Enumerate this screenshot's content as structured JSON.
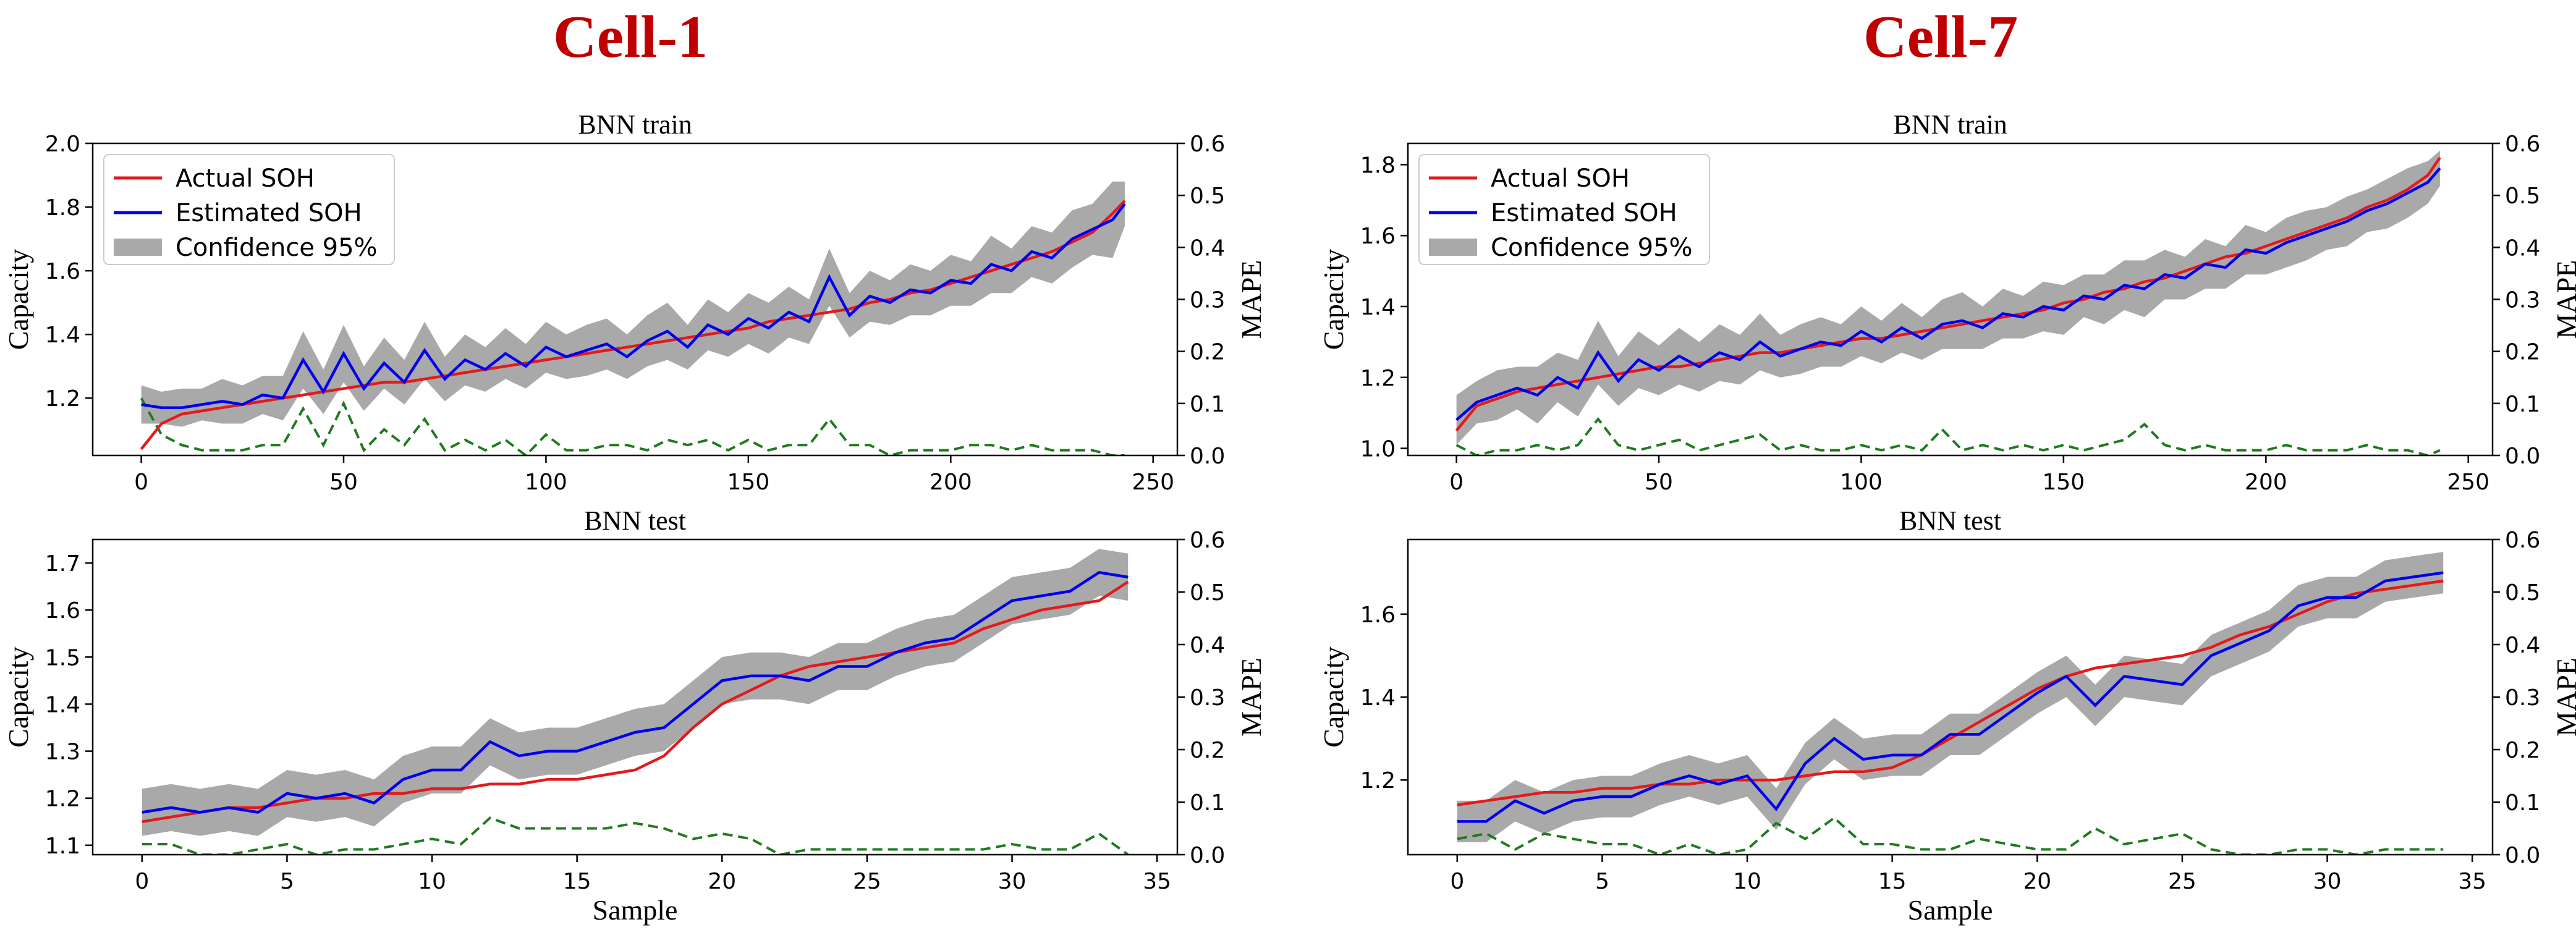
{
  "colors": {
    "actual": "#e31a1c",
    "estimated": "#0000ee",
    "band": "#a9a9a9",
    "mape": "#1e7b1e",
    "cell_title": "#c00000"
  },
  "legend": {
    "actual": "Actual SOH",
    "estimated": "Estimated SOH",
    "confidence": "Confidence 95%"
  },
  "cells": [
    {
      "title": "Cell-1"
    },
    {
      "title": "Cell-7"
    }
  ],
  "chart_data": [
    {
      "id": "c1-train",
      "type": "line",
      "cell": "Cell-1",
      "title": "BNN train",
      "xlabel": "",
      "ylabel": "Capacity",
      "y2label": "MAPE",
      "xlim": [
        -12,
        256
      ],
      "ylim": [
        1.02,
        2.0
      ],
      "y2lim": [
        0,
        0.6
      ],
      "xticks": [
        0,
        50,
        100,
        150,
        200,
        250
      ],
      "yticks": [
        1.2,
        1.4,
        1.6,
        1.8,
        2.0
      ],
      "y2ticks": [
        0.0,
        0.1,
        0.2,
        0.3,
        0.4,
        0.5,
        0.6
      ],
      "legend_loc": "upper-left",
      "x": [
        0,
        5,
        10,
        15,
        20,
        25,
        30,
        35,
        40,
        45,
        50,
        55,
        60,
        65,
        70,
        75,
        80,
        85,
        90,
        95,
        100,
        105,
        110,
        115,
        120,
        125,
        130,
        135,
        140,
        145,
        150,
        155,
        160,
        165,
        170,
        175,
        180,
        185,
        190,
        195,
        200,
        205,
        210,
        215,
        220,
        225,
        230,
        235,
        240,
        243
      ],
      "actual": [
        1.04,
        1.12,
        1.15,
        1.16,
        1.17,
        1.18,
        1.19,
        1.2,
        1.21,
        1.22,
        1.23,
        1.24,
        1.25,
        1.25,
        1.26,
        1.27,
        1.28,
        1.29,
        1.3,
        1.31,
        1.32,
        1.33,
        1.34,
        1.35,
        1.36,
        1.37,
        1.38,
        1.39,
        1.4,
        1.41,
        1.42,
        1.44,
        1.45,
        1.46,
        1.47,
        1.48,
        1.5,
        1.51,
        1.53,
        1.54,
        1.56,
        1.58,
        1.6,
        1.62,
        1.64,
        1.66,
        1.69,
        1.72,
        1.78,
        1.82
      ],
      "estimated": [
        1.18,
        1.17,
        1.17,
        1.18,
        1.19,
        1.18,
        1.21,
        1.2,
        1.32,
        1.22,
        1.34,
        1.23,
        1.31,
        1.25,
        1.35,
        1.26,
        1.32,
        1.29,
        1.34,
        1.3,
        1.36,
        1.33,
        1.35,
        1.37,
        1.33,
        1.38,
        1.41,
        1.36,
        1.43,
        1.4,
        1.45,
        1.42,
        1.47,
        1.44,
        1.58,
        1.46,
        1.52,
        1.5,
        1.54,
        1.53,
        1.57,
        1.56,
        1.62,
        1.6,
        1.66,
        1.64,
        1.7,
        1.73,
        1.76,
        1.81
      ],
      "band_half_width": [
        0.06,
        0.05,
        0.06,
        0.05,
        0.07,
        0.06,
        0.06,
        0.07,
        0.09,
        0.07,
        0.09,
        0.07,
        0.08,
        0.07,
        0.09,
        0.07,
        0.08,
        0.07,
        0.08,
        0.07,
        0.08,
        0.07,
        0.08,
        0.08,
        0.07,
        0.08,
        0.09,
        0.07,
        0.08,
        0.07,
        0.08,
        0.08,
        0.08,
        0.07,
        0.09,
        0.07,
        0.08,
        0.07,
        0.08,
        0.07,
        0.08,
        0.07,
        0.09,
        0.07,
        0.08,
        0.08,
        0.09,
        0.08,
        0.12,
        0.07
      ],
      "mape": [
        0.11,
        0.04,
        0.02,
        0.01,
        0.01,
        0.01,
        0.02,
        0.02,
        0.09,
        0.02,
        0.1,
        0.01,
        0.05,
        0.02,
        0.07,
        0.01,
        0.03,
        0.01,
        0.03,
        0.0,
        0.04,
        0.01,
        0.01,
        0.02,
        0.02,
        0.01,
        0.03,
        0.02,
        0.03,
        0.01,
        0.03,
        0.01,
        0.02,
        0.02,
        0.07,
        0.02,
        0.02,
        0.0,
        0.01,
        0.01,
        0.01,
        0.02,
        0.02,
        0.01,
        0.02,
        0.01,
        0.01,
        0.01,
        0.0,
        0.0
      ]
    },
    {
      "id": "c1-test",
      "type": "line",
      "cell": "Cell-1",
      "title": "BNN test",
      "xlabel": "Sample",
      "ylabel": "Capacity",
      "y2label": "MAPE",
      "xlim": [
        -1.7,
        35.7
      ],
      "ylim": [
        1.08,
        1.75
      ],
      "y2lim": [
        0,
        0.6
      ],
      "xticks": [
        0,
        5,
        10,
        15,
        20,
        25,
        30,
        35
      ],
      "yticks": [
        1.1,
        1.2,
        1.3,
        1.4,
        1.5,
        1.6,
        1.7
      ],
      "y2ticks": [
        0.0,
        0.1,
        0.2,
        0.3,
        0.4,
        0.5,
        0.6
      ],
      "x": [
        0,
        1,
        2,
        3,
        4,
        5,
        6,
        7,
        8,
        9,
        10,
        11,
        12,
        13,
        14,
        15,
        16,
        17,
        18,
        19,
        20,
        21,
        22,
        23,
        24,
        25,
        26,
        27,
        28,
        29,
        30,
        31,
        32,
        33,
        34
      ],
      "actual": [
        1.15,
        1.16,
        1.17,
        1.18,
        1.18,
        1.19,
        1.2,
        1.2,
        1.21,
        1.21,
        1.22,
        1.22,
        1.23,
        1.23,
        1.24,
        1.24,
        1.25,
        1.26,
        1.29,
        1.35,
        1.4,
        1.43,
        1.46,
        1.48,
        1.49,
        1.5,
        1.51,
        1.52,
        1.53,
        1.56,
        1.58,
        1.6,
        1.61,
        1.62,
        1.66
      ],
      "estimated": [
        1.17,
        1.18,
        1.17,
        1.18,
        1.17,
        1.21,
        1.2,
        1.21,
        1.19,
        1.24,
        1.26,
        1.26,
        1.32,
        1.29,
        1.3,
        1.3,
        1.32,
        1.34,
        1.35,
        1.4,
        1.45,
        1.46,
        1.46,
        1.45,
        1.48,
        1.48,
        1.51,
        1.53,
        1.54,
        1.58,
        1.62,
        1.63,
        1.64,
        1.68,
        1.67
      ],
      "band_half_width": [
        0.05,
        0.05,
        0.05,
        0.05,
        0.05,
        0.05,
        0.05,
        0.05,
        0.05,
        0.05,
        0.05,
        0.05,
        0.05,
        0.05,
        0.05,
        0.05,
        0.05,
        0.05,
        0.05,
        0.05,
        0.05,
        0.05,
        0.05,
        0.05,
        0.05,
        0.05,
        0.05,
        0.05,
        0.05,
        0.05,
        0.05,
        0.05,
        0.05,
        0.05,
        0.05
      ],
      "mape": [
        0.02,
        0.02,
        0.0,
        0.0,
        0.01,
        0.02,
        0.0,
        0.01,
        0.01,
        0.02,
        0.03,
        0.02,
        0.07,
        0.05,
        0.05,
        0.05,
        0.05,
        0.06,
        0.05,
        0.03,
        0.04,
        0.03,
        0.0,
        0.01,
        0.01,
        0.01,
        0.01,
        0.01,
        0.01,
        0.01,
        0.02,
        0.01,
        0.01,
        0.04,
        0.0
      ]
    },
    {
      "id": "c7-train",
      "type": "line",
      "cell": "Cell-7",
      "title": "BNN train",
      "xlabel": "",
      "ylabel": "Capacity",
      "y2label": "MAPE",
      "xlim": [
        -12,
        256
      ],
      "ylim": [
        0.98,
        1.86
      ],
      "y2lim": [
        0,
        0.6
      ],
      "xticks": [
        0,
        50,
        100,
        150,
        200,
        250
      ],
      "yticks": [
        1.0,
        1.2,
        1.4,
        1.6,
        1.8
      ],
      "y2ticks": [
        0.0,
        0.1,
        0.2,
        0.3,
        0.4,
        0.5,
        0.6
      ],
      "legend_loc": "upper-left",
      "x": [
        0,
        5,
        10,
        15,
        20,
        25,
        30,
        35,
        40,
        45,
        50,
        55,
        60,
        65,
        70,
        75,
        80,
        85,
        90,
        95,
        100,
        105,
        110,
        115,
        120,
        125,
        130,
        135,
        140,
        145,
        150,
        155,
        160,
        165,
        170,
        175,
        180,
        185,
        190,
        195,
        200,
        205,
        210,
        215,
        220,
        225,
        230,
        235,
        240,
        243
      ],
      "actual": [
        1.05,
        1.12,
        1.14,
        1.16,
        1.17,
        1.18,
        1.19,
        1.2,
        1.21,
        1.22,
        1.23,
        1.23,
        1.24,
        1.25,
        1.26,
        1.27,
        1.27,
        1.28,
        1.29,
        1.3,
        1.31,
        1.31,
        1.32,
        1.33,
        1.34,
        1.35,
        1.36,
        1.37,
        1.38,
        1.39,
        1.41,
        1.42,
        1.44,
        1.45,
        1.47,
        1.48,
        1.5,
        1.52,
        1.54,
        1.55,
        1.57,
        1.59,
        1.61,
        1.63,
        1.65,
        1.68,
        1.7,
        1.73,
        1.77,
        1.82
      ],
      "estimated": [
        1.08,
        1.13,
        1.15,
        1.17,
        1.15,
        1.2,
        1.17,
        1.27,
        1.19,
        1.25,
        1.22,
        1.26,
        1.23,
        1.27,
        1.25,
        1.3,
        1.26,
        1.28,
        1.3,
        1.29,
        1.33,
        1.3,
        1.34,
        1.31,
        1.35,
        1.36,
        1.34,
        1.38,
        1.37,
        1.4,
        1.39,
        1.43,
        1.42,
        1.46,
        1.45,
        1.49,
        1.48,
        1.52,
        1.51,
        1.56,
        1.55,
        1.58,
        1.6,
        1.62,
        1.64,
        1.67,
        1.69,
        1.72,
        1.75,
        1.79
      ],
      "band_half_width": [
        0.07,
        0.06,
        0.07,
        0.06,
        0.08,
        0.07,
        0.08,
        0.09,
        0.07,
        0.08,
        0.07,
        0.08,
        0.07,
        0.08,
        0.07,
        0.08,
        0.06,
        0.07,
        0.07,
        0.06,
        0.07,
        0.06,
        0.07,
        0.06,
        0.07,
        0.08,
        0.06,
        0.07,
        0.06,
        0.07,
        0.07,
        0.06,
        0.07,
        0.07,
        0.08,
        0.07,
        0.06,
        0.07,
        0.06,
        0.07,
        0.06,
        0.07,
        0.07,
        0.06,
        0.07,
        0.06,
        0.07,
        0.07,
        0.06,
        0.05
      ],
      "mape": [
        0.02,
        0.0,
        0.01,
        0.01,
        0.02,
        0.01,
        0.02,
        0.07,
        0.02,
        0.01,
        0.02,
        0.03,
        0.01,
        0.02,
        0.03,
        0.04,
        0.01,
        0.02,
        0.01,
        0.01,
        0.02,
        0.01,
        0.02,
        0.01,
        0.05,
        0.01,
        0.02,
        0.01,
        0.02,
        0.01,
        0.02,
        0.01,
        0.02,
        0.03,
        0.06,
        0.02,
        0.01,
        0.02,
        0.01,
        0.01,
        0.01,
        0.02,
        0.01,
        0.01,
        0.01,
        0.02,
        0.01,
        0.01,
        0.0,
        0.01
      ]
    },
    {
      "id": "c7-test",
      "type": "line",
      "cell": "Cell-7",
      "title": "BNN test",
      "xlabel": "Sample",
      "ylabel": "Capacity",
      "y2label": "MAPE",
      "xlim": [
        -1.7,
        35.7
      ],
      "ylim": [
        1.02,
        1.78
      ],
      "y2lim": [
        0,
        0.6
      ],
      "xticks": [
        0,
        5,
        10,
        15,
        20,
        25,
        30,
        35
      ],
      "yticks": [
        1.2,
        1.4,
        1.6
      ],
      "y2ticks": [
        0.0,
        0.1,
        0.2,
        0.3,
        0.4,
        0.5,
        0.6
      ],
      "x": [
        0,
        1,
        2,
        3,
        4,
        5,
        6,
        7,
        8,
        9,
        10,
        11,
        12,
        13,
        14,
        15,
        16,
        17,
        18,
        19,
        20,
        21,
        22,
        23,
        24,
        25,
        26,
        27,
        28,
        29,
        30,
        31,
        32,
        33,
        34
      ],
      "actual": [
        1.14,
        1.15,
        1.16,
        1.17,
        1.17,
        1.18,
        1.18,
        1.19,
        1.19,
        1.2,
        1.2,
        1.2,
        1.21,
        1.22,
        1.22,
        1.23,
        1.26,
        1.3,
        1.34,
        1.38,
        1.42,
        1.45,
        1.47,
        1.48,
        1.49,
        1.5,
        1.52,
        1.55,
        1.57,
        1.6,
        1.63,
        1.65,
        1.66,
        1.67,
        1.68
      ],
      "estimated": [
        1.1,
        1.1,
        1.15,
        1.12,
        1.15,
        1.16,
        1.16,
        1.19,
        1.21,
        1.19,
        1.21,
        1.13,
        1.24,
        1.3,
        1.25,
        1.26,
        1.26,
        1.31,
        1.31,
        1.36,
        1.41,
        1.45,
        1.38,
        1.45,
        1.44,
        1.43,
        1.5,
        1.53,
        1.56,
        1.62,
        1.64,
        1.64,
        1.68,
        1.69,
        1.7
      ],
      "band_half_width": [
        0.05,
        0.05,
        0.05,
        0.05,
        0.05,
        0.05,
        0.05,
        0.05,
        0.05,
        0.05,
        0.05,
        0.05,
        0.05,
        0.05,
        0.05,
        0.05,
        0.05,
        0.05,
        0.05,
        0.05,
        0.05,
        0.05,
        0.05,
        0.05,
        0.05,
        0.05,
        0.05,
        0.05,
        0.05,
        0.05,
        0.05,
        0.05,
        0.05,
        0.05,
        0.05
      ],
      "mape": [
        0.03,
        0.04,
        0.01,
        0.04,
        0.03,
        0.02,
        0.02,
        0.0,
        0.02,
        0.0,
        0.01,
        0.06,
        0.03,
        0.07,
        0.02,
        0.02,
        0.01,
        0.01,
        0.03,
        0.02,
        0.01,
        0.01,
        0.05,
        0.02,
        0.03,
        0.04,
        0.01,
        0.0,
        0.0,
        0.01,
        0.01,
        0.0,
        0.01,
        0.01,
        0.01
      ]
    }
  ]
}
